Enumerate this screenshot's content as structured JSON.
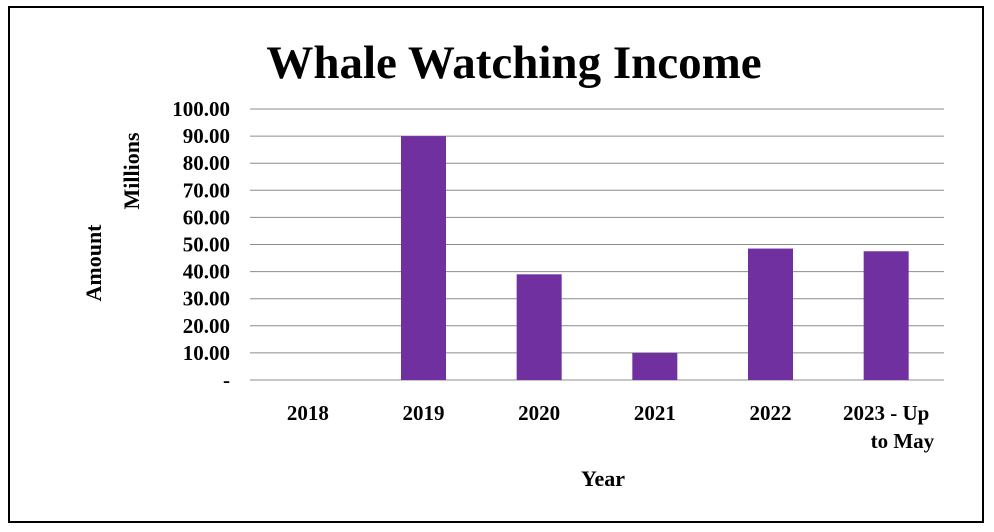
{
  "chart_data": {
    "type": "bar",
    "title": "Whale Watching Income",
    "xlabel": "Year",
    "ylabel": "Amount",
    "yunit_label": "Millions",
    "categories": [
      [
        "2018"
      ],
      [
        "2019"
      ],
      [
        "2020"
      ],
      [
        "2021"
      ],
      [
        "2022"
      ],
      [
        "2023 - Up",
        "to May"
      ]
    ],
    "values": [
      0,
      90,
      39,
      10,
      48.5,
      47.5
    ],
    "ylim": [
      0,
      100
    ],
    "yticks": [
      0,
      10,
      20,
      30,
      40,
      50,
      60,
      70,
      80,
      90,
      100
    ],
    "ytick_labels": [
      "-",
      "10.00",
      "20.00",
      "30.00",
      "40.00",
      "50.00",
      "60.00",
      "70.00",
      "80.00",
      "90.00",
      "100.00"
    ],
    "grid": true,
    "legend": "none",
    "colors": {
      "bar": "#7030A0",
      "grid": "#8c8c8c",
      "text": "#000000"
    }
  }
}
